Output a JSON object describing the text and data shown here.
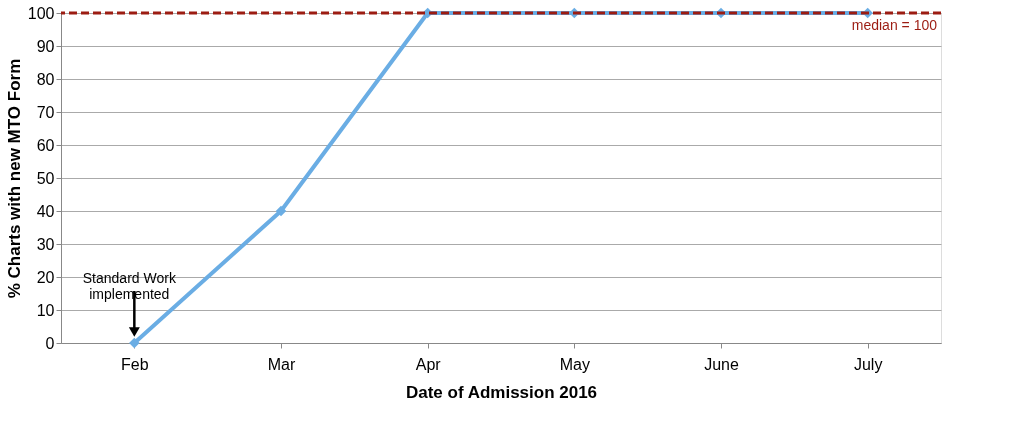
{
  "chart_data": {
    "type": "line",
    "xlabel": "Date of Admission 2016",
    "ylabel": "% Charts with new MTO Form",
    "categories": [
      "Feb",
      "Mar",
      "Apr",
      "May",
      "June",
      "July"
    ],
    "series": [
      {
        "color": "#6aade4",
        "values": [
          0,
          40,
          100,
          100,
          100,
          100
        ]
      }
    ],
    "ylim": [
      0,
      100
    ],
    "yticks": [
      0,
      10,
      20,
      30,
      40,
      50,
      60,
      70,
      80,
      90,
      100
    ],
    "grid": "y",
    "marker": "diamond",
    "line_style": "solid",
    "ref_lines": [
      {
        "axis": "y",
        "value": 100,
        "label": "median = 100",
        "color": "#9c1c12",
        "line_style": "dashed"
      }
    ],
    "annotations": [
      {
        "text": "Standard Work\nimplemented",
        "x": "Feb",
        "y": 0
      }
    ]
  }
}
